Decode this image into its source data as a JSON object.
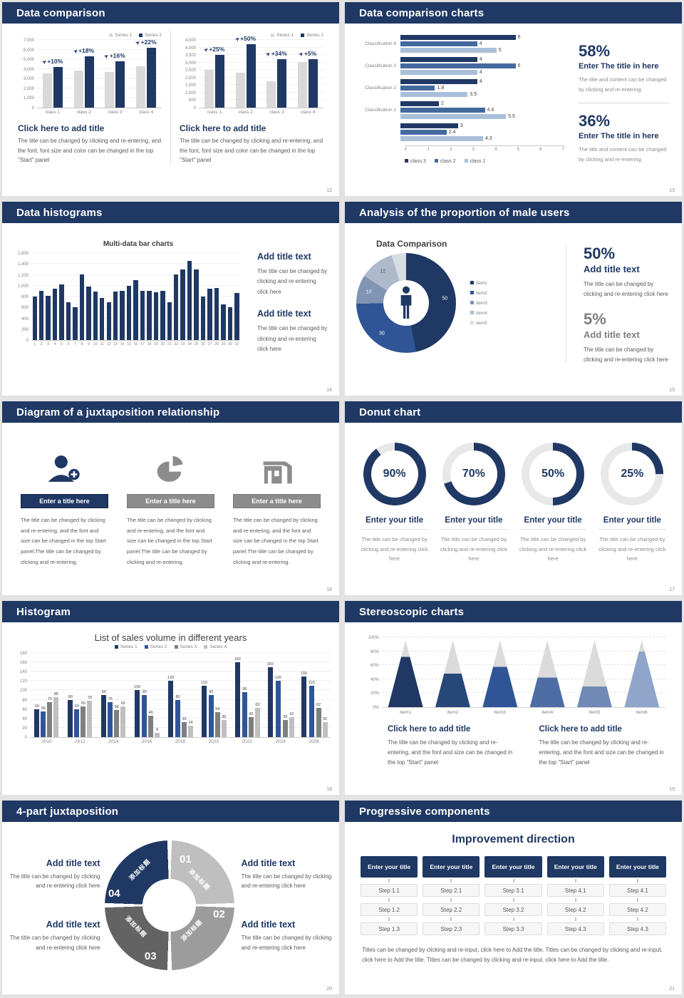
{
  "colors": {
    "header_navy": "#1F3864",
    "navy": "#1F3864",
    "medium_blue": "#2F5597",
    "steel_blue": "#44699E",
    "light_blue": "#A9BFD9",
    "bar_gray": "#D9D9D9",
    "dark_gray": "#7F7F7F",
    "light_gray": "#BFBFBF",
    "body_text": "#595959",
    "ring_track": "#E8E8E8"
  },
  "slides": {
    "cmp": {
      "title": "Data comparison",
      "page": "12",
      "heading": "Click here to add title",
      "body": "The title can be changed by clicking and re-entering, and the font, font size and color can be changed in the top \"Start\" panel"
    },
    "hbar": {
      "title": "Data comparison charts",
      "page": "13",
      "pct1": "58%",
      "pct2": "36%",
      "head": "Enter The title in here",
      "body": "The title and content can be changed by clicking and re-entering."
    },
    "hist": {
      "title": "Data histograms",
      "page": "14",
      "chart_title": "Multi-data bar charts",
      "head": "Add title text",
      "body": "The title can be changed by clicking and re-entering click here"
    },
    "male": {
      "title": "Analysis of the proportion of male users",
      "page": "15",
      "chart_title": "Data Comparison",
      "pct1": "50%",
      "pct2": "5%",
      "head": "Add title text",
      "body": "The title can be changed by clicking and re-entering click here"
    },
    "tri": {
      "title": "Diagram of a juxtaposition relationship",
      "page": "16",
      "bar_label": "Enter a title here",
      "body": "The title can be changed by clicking and re-entering, and the font and size can be changed in the top Start panel.The title can be changed by clicking and re-entering."
    },
    "rings": {
      "title": "Donut chart",
      "page": "17",
      "card_title": "Enter your title",
      "card_body": "The title can be changed by clicking and re-entering click here",
      "items": [
        {
          "pct": "90%"
        },
        {
          "pct": "70%"
        },
        {
          "pct": "50%"
        },
        {
          "pct": "25%"
        }
      ]
    },
    "sales": {
      "title": "Histogram",
      "page": "18",
      "chart_title": "List of sales volume in different years"
    },
    "cones": {
      "title": "Stereoscopic charts",
      "page": "19",
      "head": "Click here to add title",
      "body": "The title can be changed by clicking and re-entering, and the font and size can be changed in the top \"Start\" panel"
    },
    "quad": {
      "title": "4-part juxtaposition",
      "page": "20",
      "head": "Add title text",
      "body": "The title can be changed by clicking and re-entering click here",
      "cn": "添加标题",
      "parts": [
        {
          "num": "01"
        },
        {
          "num": "02"
        },
        {
          "num": "03"
        },
        {
          "num": "04"
        }
      ],
      "part_colors": [
        "#BFBFBF",
        "#9C9C9C",
        "#636363",
        "#1F3864"
      ]
    },
    "steps": {
      "title": "Progressive components",
      "page": "21",
      "heading": "Improvement direction",
      "columns": [
        {
          "title": "Enter your title",
          "steps": [
            "Step 1.1",
            "Step 1.2",
            "Step 1.3"
          ]
        },
        {
          "title": "Enter your title",
          "steps": [
            "Step 2.1",
            "Step 2.2",
            "Step 2.3"
          ]
        },
        {
          "title": "Enter your title",
          "steps": [
            "Step 3.1",
            "Step 3.2",
            "Step 3.3"
          ]
        },
        {
          "title": "Enter your title",
          "steps": [
            "Step 4.1",
            "Step 4.2",
            "Step 4.3"
          ]
        },
        {
          "title": "Enter your title",
          "steps": [
            "Step 4.1",
            "Step 4.2",
            "Step 4.3"
          ]
        }
      ],
      "footer": "Titles can be changed by clicking and re-input, click here to Add the title. Titles can be changed by clicking and re-input, click here to Add the title. Titles can be changed by clicking and re-input, click here to Add the title."
    }
  },
  "chart_data": [
    {
      "id": "cmpA",
      "type": "bar",
      "ylim": [
        0,
        7000
      ],
      "ytick": 1000,
      "categories": [
        "class 1",
        "class 2",
        "class 3",
        "class 4"
      ],
      "growth": [
        "+10%",
        "+18%",
        "+16%",
        "+22%"
      ],
      "series": [
        {
          "name": "Series 1",
          "color": "#D9D9D9",
          "values": [
            3500,
            3800,
            3700,
            4300
          ]
        },
        {
          "name": "Series 2",
          "color": "#1F3864",
          "values": [
            4200,
            5300,
            4800,
            6200
          ]
        }
      ]
    },
    {
      "id": "cmpB",
      "type": "bar",
      "ylim": [
        0,
        4500
      ],
      "ytick": 500,
      "categories": [
        "class 1",
        "class 2",
        "class 3",
        "class 4"
      ],
      "growth": [
        "+25%",
        "+50%",
        "+34%",
        "+5%"
      ],
      "series": [
        {
          "name": "Series 1",
          "color": "#D9D9D9",
          "values": [
            2500,
            2300,
            1750,
            3050
          ]
        },
        {
          "name": "Series 2",
          "color": "#1F3864",
          "values": [
            3500,
            4200,
            3200,
            3200
          ]
        }
      ]
    },
    {
      "id": "hbar",
      "type": "hbar",
      "xlim": [
        0,
        7
      ],
      "categories": [
        "Classification 4",
        "Classification 3",
        "Classification 2",
        "Classification 1",
        ""
      ],
      "series": [
        {
          "name": "class 3",
          "color": "#1F3864",
          "values": [
            6,
            4,
            4,
            2,
            3
          ]
        },
        {
          "name": "class 2",
          "color": "#44699E",
          "values": [
            4,
            6,
            1.8,
            4.4,
            2.4
          ]
        },
        {
          "name": "class 1",
          "color": "#A9BFD9",
          "values": [
            5,
            4,
            3.5,
            5.5,
            4.3
          ]
        }
      ]
    },
    {
      "id": "hist",
      "type": "hist",
      "ylim": [
        0,
        1600
      ],
      "ytick": 200,
      "color": "#1F3864",
      "x": [
        1,
        2,
        3,
        4,
        5,
        6,
        7,
        8,
        9,
        10,
        11,
        12,
        13,
        14,
        15,
        16,
        17,
        18,
        19,
        20,
        21,
        22,
        23,
        24,
        25,
        26,
        27,
        28,
        29,
        30,
        31
      ],
      "values": [
        800,
        900,
        810,
        950,
        1020,
        700,
        600,
        1210,
        980,
        890,
        780,
        700,
        890,
        900,
        1000,
        1100,
        900,
        900,
        880,
        900,
        700,
        1210,
        1300,
        1450,
        1300,
        800,
        950,
        960,
        660,
        600,
        870
      ]
    },
    {
      "id": "donut",
      "type": "donut",
      "values": [
        50,
        30,
        10,
        12,
        5
      ],
      "labels": [
        "50",
        "30",
        "10",
        "12",
        ""
      ],
      "label_colors": [
        "#FFFFFF",
        "#FFFFFF",
        "#FFFFFF",
        "#44546A",
        ""
      ],
      "colors": [
        "#1F3864",
        "#2F5597",
        "#8094B4",
        "#AEBACB",
        "#D8DDE5"
      ],
      "legend": [
        "item1",
        "item2",
        "item3",
        "item4",
        "item5"
      ]
    },
    {
      "id": "rings",
      "type": "rings",
      "values": [
        90,
        70,
        50,
        25
      ],
      "arc": "#1F3864",
      "track": "#E8E8E8"
    },
    {
      "id": "sales",
      "type": "bar",
      "ylim": [
        0,
        180
      ],
      "ytick": 20,
      "value_labels": true,
      "barw": 7,
      "categories": [
        "2010",
        "2012",
        "2014",
        "2016",
        "2018",
        "2020",
        "2022",
        "2024",
        "2026"
      ],
      "series": [
        {
          "name": "Series 1",
          "color": "#1F3864",
          "values": [
            60,
            80,
            90,
            100,
            120,
            110,
            160,
            150,
            130
          ]
        },
        {
          "name": "Series 2",
          "color": "#2F5597",
          "values": [
            55,
            60,
            75,
            90,
            80,
            90,
            96,
            120,
            110
          ]
        },
        {
          "name": "Series 3",
          "color": "#7F7F7F",
          "values": [
            75,
            65,
            58,
            46,
            32,
            54,
            42,
            36,
            62
          ]
        },
        {
          "name": "Series 4",
          "color": "#BFBFBF",
          "values": [
            85,
            78,
            65,
            9,
            24,
            36,
            63,
            42,
            32
          ]
        }
      ]
    },
    {
      "id": "cones",
      "type": "cones",
      "items": [
        "item1",
        "item2",
        "item3",
        "item4",
        "item5",
        "item6"
      ],
      "fill_pct": [
        75,
        50,
        60,
        44,
        31,
        83
      ],
      "colors": [
        "#1F3864",
        "#264879",
        "#2F5597",
        "#4E6DA4",
        "#7189B6",
        "#8FA5C9"
      ],
      "top_color": "#DBDBDB",
      "yticks": [
        "0%",
        "20%",
        "40%",
        "60%",
        "80%",
        "100%"
      ]
    }
  ]
}
